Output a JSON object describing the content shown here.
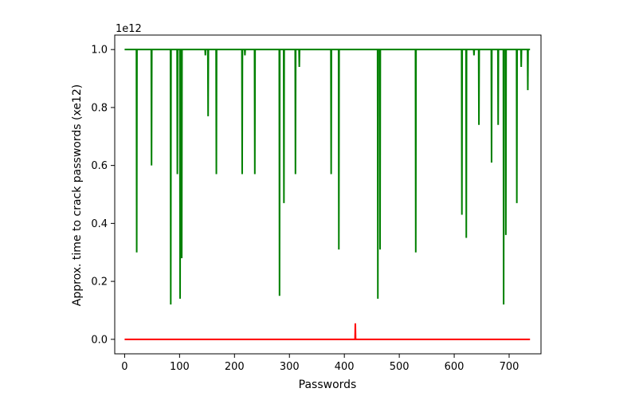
{
  "chart_data": {
    "type": "line",
    "xlabel": "Passwords",
    "ylabel": "Approx. time to crack passwords (xe12)",
    "offset_label": "1e12",
    "xlim": [
      -18,
      758
    ],
    "ylim": [
      -0.05,
      1.05
    ],
    "x_ticks": [
      0,
      100,
      200,
      300,
      400,
      500,
      600,
      700
    ],
    "y_ticks": [
      0.0,
      0.2,
      0.4,
      0.6,
      0.8,
      1.0
    ],
    "x_tick_labels": [
      "0",
      "100",
      "200",
      "300",
      "400",
      "500",
      "600",
      "700"
    ],
    "y_tick_labels": [
      "0.0",
      "0.2",
      "0.4",
      "0.6",
      "0.8",
      "1.0"
    ],
    "grid": false,
    "series": [
      {
        "color": "#008000",
        "base": 1.0,
        "x_max": 738,
        "dips": [
          [
            22,
            0.3
          ],
          [
            49,
            0.6
          ],
          [
            84,
            0.12
          ],
          [
            96,
            0.57
          ],
          [
            101,
            0.14
          ],
          [
            104,
            0.28
          ],
          [
            147,
            0.98
          ],
          [
            152,
            0.77
          ],
          [
            167,
            0.57
          ],
          [
            214,
            0.57
          ],
          [
            219,
            0.98
          ],
          [
            237,
            0.57
          ],
          [
            282,
            0.15
          ],
          [
            290,
            0.47
          ],
          [
            311,
            0.57
          ],
          [
            318,
            0.94
          ],
          [
            376,
            0.57
          ],
          [
            390,
            0.31
          ],
          [
            461,
            0.14
          ],
          [
            465,
            0.31
          ],
          [
            530,
            0.3
          ],
          [
            614,
            0.43
          ],
          [
            622,
            0.35
          ],
          [
            636,
            0.98
          ],
          [
            645,
            0.74
          ],
          [
            668,
            0.61
          ],
          [
            680,
            0.74
          ],
          [
            690,
            0.12
          ],
          [
            694,
            0.36
          ],
          [
            714,
            0.47
          ],
          [
            722,
            0.94
          ],
          [
            734,
            0.86
          ]
        ]
      },
      {
        "color": "#ff0000",
        "base": 0.0,
        "x_max": 738,
        "spikes": [
          [
            420,
            0.055
          ]
        ]
      }
    ]
  }
}
